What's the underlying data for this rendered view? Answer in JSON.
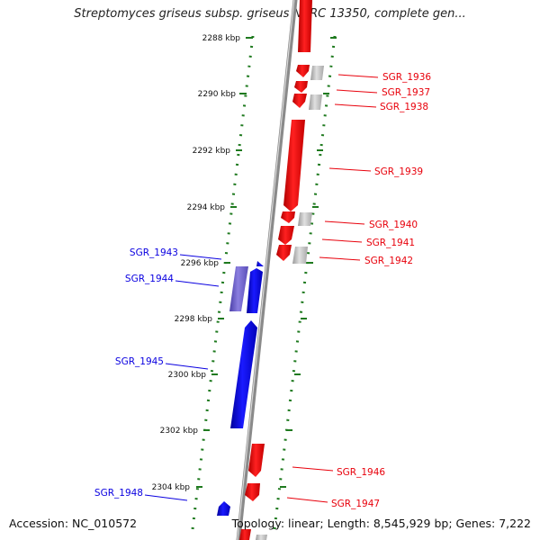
{
  "title": "Streptomyces griseus subsp. griseus NBRC 13350, complete gen...",
  "accession_text": "Accession: NC_010572",
  "summary_text": "Topology: linear; Length: 8,545,929 bp; Genes: 7,222",
  "colors": {
    "forward": "#e8000b",
    "reverse": "#0a00e0",
    "reverse_light": "#6a5acd",
    "pseudo": "#b8b8b8",
    "ruler": "#1f7a1f",
    "backbone": "#8a8a8a"
  },
  "ruler_ticks_kbp": [
    "2288 kbp",
    "2290 kbp",
    "2292 kbp",
    "2294 kbp",
    "2296 kbp",
    "2298 kbp",
    "2300 kbp",
    "2302 kbp",
    "2304 kbp"
  ],
  "genes_forward": [
    "SGR_1936",
    "SGR_1937",
    "SGR_1938",
    "SGR_1939",
    "SGR_1940",
    "SGR_1941",
    "SGR_1942",
    "SGR_1946",
    "SGR_1947"
  ],
  "genes_reverse": [
    "SGR_1943",
    "SGR_1944",
    "SGR_1945",
    "SGR_1948"
  ]
}
